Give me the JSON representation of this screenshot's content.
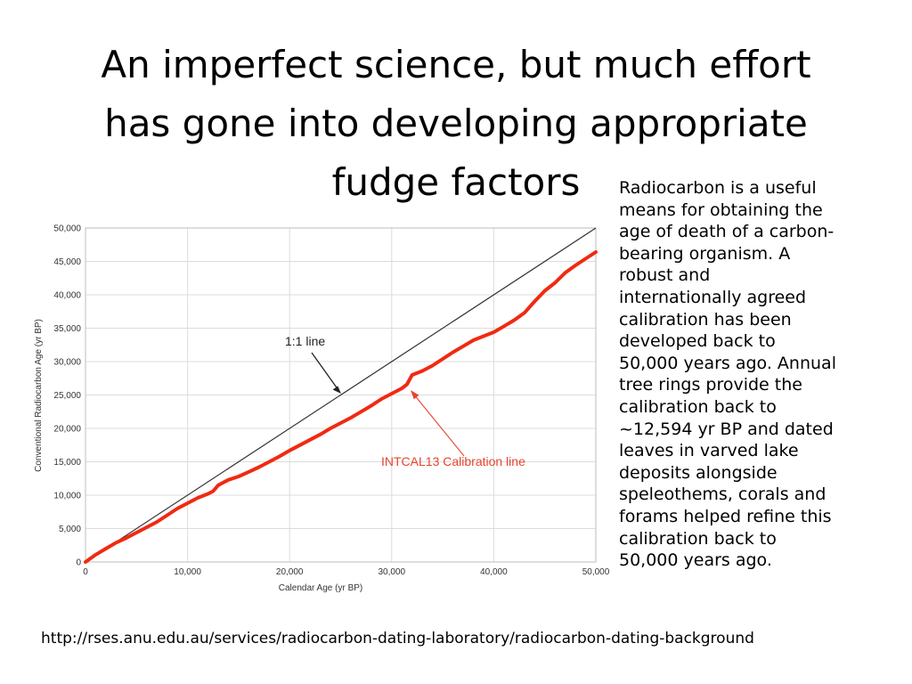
{
  "slide": {
    "title_lines": [
      "An imperfect science, but much effort",
      "has gone into developing appropriate",
      "fudge factors"
    ],
    "side_text_lines": [
      "Radiocarbon is a useful",
      "means for obtaining the",
      "age of death of a carbon-",
      "bearing organism.  A",
      "robust and",
      "internationally agreed",
      "calibration has been",
      "developed back to",
      "50,000 years ago. Annual",
      "tree rings provide the",
      "calibration back to",
      "~12,594 yr BP and dated",
      "leaves in varved lake",
      "deposits alongside",
      "speleothems, corals and",
      "forams helped refine this",
      "calibration back to",
      "50,000 years ago."
    ],
    "source_url": "http://rses.anu.edu.au/services/radiocarbon-dating-laboratory/radiocarbon-dating-background"
  },
  "chart_data": {
    "type": "line",
    "xlabel": "Calendar Age (yr BP)",
    "ylabel": "Conventional Radiocarbon Age (yr BP)",
    "xlim": [
      0,
      50000
    ],
    "ylim": [
      0,
      50000
    ],
    "x_ticks": [
      "0",
      "10,000",
      "20,000",
      "30,000",
      "40,000",
      "50,000"
    ],
    "y_ticks": [
      "0",
      "5,000",
      "10,000",
      "15,000",
      "20,000",
      "25,000",
      "30,000",
      "35,000",
      "40,000",
      "45,000",
      "50,000"
    ],
    "grid": true,
    "colors": {
      "calibration": "#f02a12",
      "one_to_one": "#333333",
      "annotation_label": "#e8452e"
    },
    "series": [
      {
        "name": "1:1 line",
        "x": [
          0,
          50000
        ],
        "y": [
          0,
          50000
        ]
      },
      {
        "name": "INTCAL13 Calibration line",
        "x": [
          0,
          1000,
          2000,
          3000,
          4000,
          5000,
          6000,
          7000,
          8000,
          9000,
          10000,
          11000,
          12000,
          12500,
          13000,
          14000,
          15000,
          16000,
          17000,
          18000,
          19000,
          20000,
          21000,
          22000,
          23000,
          24000,
          25000,
          26000,
          27000,
          28000,
          29000,
          30000,
          31000,
          31500,
          32000,
          33000,
          34000,
          35000,
          36000,
          37000,
          38000,
          39000,
          40000,
          41000,
          42000,
          43000,
          44000,
          45000,
          46000,
          47000,
          48000,
          49000,
          50000
        ],
        "y": [
          0,
          1100,
          2000,
          2900,
          3600,
          4400,
          5200,
          6000,
          7000,
          8000,
          8800,
          9600,
          10200,
          10600,
          11500,
          12300,
          12800,
          13500,
          14200,
          15000,
          15800,
          16700,
          17500,
          18300,
          19100,
          20000,
          20800,
          21600,
          22500,
          23400,
          24400,
          25200,
          26000,
          26600,
          28000,
          28600,
          29400,
          30400,
          31400,
          32300,
          33200,
          33800,
          34400,
          35300,
          36200,
          37300,
          39000,
          40600,
          41800,
          43300,
          44400,
          45400,
          46400
        ]
      }
    ],
    "annotations": [
      {
        "text": "1:1 line"
      },
      {
        "text": "INTCAL13 Calibration line"
      }
    ]
  }
}
